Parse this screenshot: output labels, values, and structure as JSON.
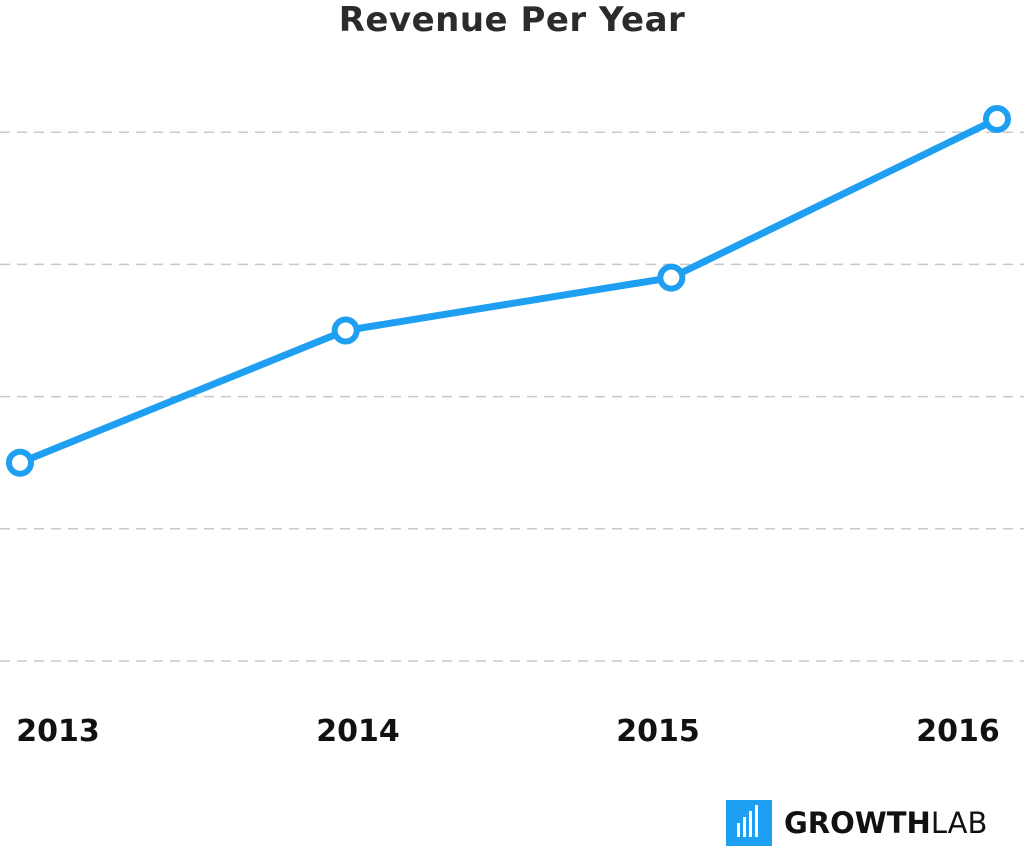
{
  "chart_data": {
    "type": "line",
    "title": "Revenue Per Year",
    "xlabel": "",
    "ylabel": "",
    "categories": [
      "2013",
      "2014",
      "2015",
      "2016"
    ],
    "series": [
      {
        "values": [
          1.5,
          2.5,
          2.9,
          4.1
        ]
      }
    ],
    "ylim": [
      0,
      5
    ],
    "grid": true,
    "legend": "none",
    "colors": {
      "line": "#1f9ff2",
      "grid": "#c8c8c8"
    }
  },
  "branding": {
    "logo_bold": "GROWTH",
    "logo_light": "LAB"
  }
}
